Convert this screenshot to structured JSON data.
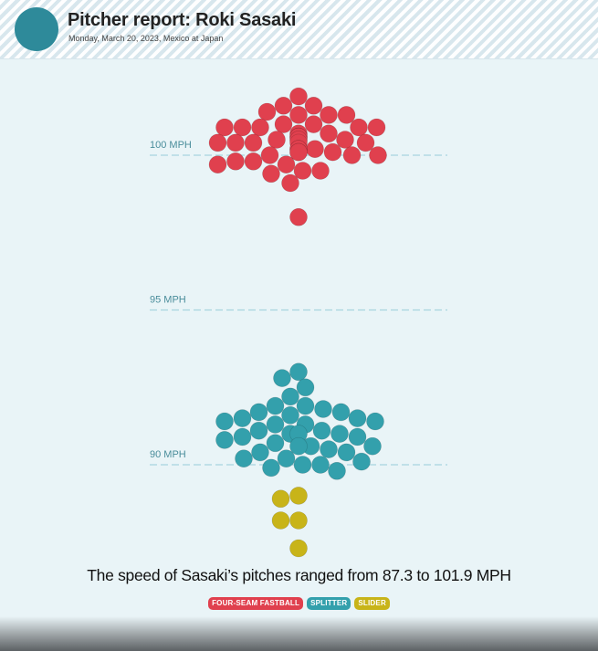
{
  "header": {
    "title": "Pitcher report: Roki Sasaki",
    "subtitle": "Monday, March 20, 2023, Mexico at Japan"
  },
  "caption": "The speed of Sasaki’s pitches ranged from 87.3 to 101.9 MPH",
  "legend": [
    {
      "label": "FOUR-SEAM FASTBALL",
      "color": "#e0404e"
    },
    {
      "label": "SPLITTER",
      "color": "#33a0ac"
    },
    {
      "label": "SLIDER",
      "color": "#c8b419"
    }
  ],
  "colors": {
    "background": "#e9f4f7",
    "gridline": "#a8d4de",
    "axis_label": "#4a8d9b",
    "avatar": "#2e8a9a"
  },
  "chart_data": {
    "type": "scatter",
    "title": "",
    "xlabel": "",
    "ylabel": "",
    "y_unit": "MPH",
    "ylim": [
      87,
      102.5
    ],
    "gridlines": [
      {
        "value": 100,
        "label": "100 MPH"
      },
      {
        "value": 95,
        "label": "95 MPH"
      },
      {
        "value": 90,
        "label": "90 MPH"
      }
    ],
    "series": [
      {
        "name": "FOUR-SEAM FASTBALL",
        "color": "#e0404e",
        "values": [
          101.9,
          101.6,
          101.6,
          101.4,
          101.3,
          101.3,
          101.3,
          101.0,
          101.0,
          100.9,
          100.9,
          100.9,
          100.9,
          100.9,
          100.7,
          100.7,
          100.6,
          100.6,
          100.6,
          100.5,
          100.5,
          100.5,
          100.5,
          100.4,
          100.4,
          100.4,
          100.4,
          100.4,
          100.2,
          100.2,
          100.2,
          100.1,
          100.1,
          100.1,
          100.0,
          100.0,
          100.0,
          99.8,
          99.8,
          99.7,
          99.7,
          99.5,
          99.5,
          99.4,
          99.1,
          98.0
        ]
      },
      {
        "name": "SPLITTER",
        "color": "#33a0ac",
        "values": [
          93.0,
          92.8,
          92.5,
          92.2,
          91.9,
          91.9,
          91.8,
          91.7,
          91.7,
          91.6,
          91.5,
          91.5,
          91.4,
          91.4,
          91.3,
          91.3,
          91.1,
          91.1,
          91.0,
          91.0,
          91.0,
          90.9,
          90.9,
          90.8,
          90.7,
          90.6,
          90.6,
          90.6,
          90.5,
          90.4,
          90.4,
          90.2,
          90.2,
          90.1,
          90.0,
          90.0,
          89.9,
          89.8
        ]
      },
      {
        "name": "SLIDER",
        "color": "#c8b419",
        "values": [
          89.0,
          88.9,
          88.2,
          88.2,
          87.3
        ]
      }
    ]
  }
}
